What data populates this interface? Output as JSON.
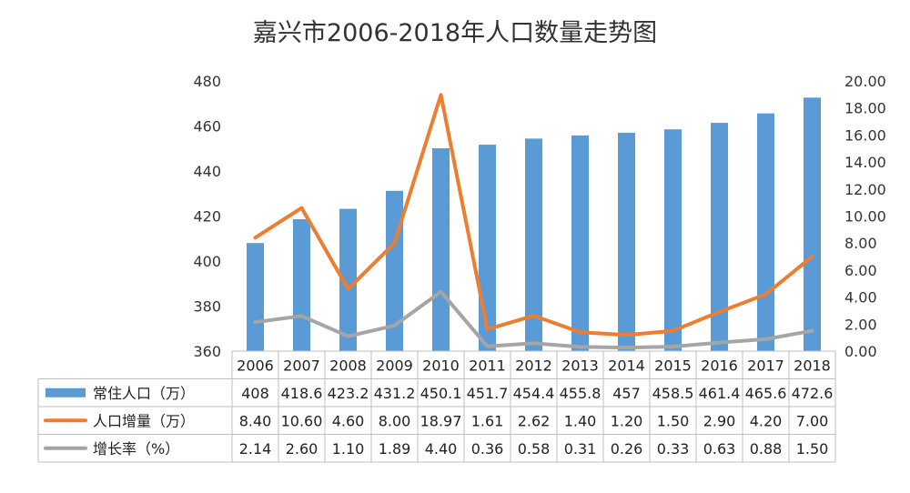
{
  "chart_data": {
    "type": "bar",
    "title": "嘉兴市2006-2018年人口数量走势图",
    "categories": [
      "2006",
      "2007",
      "2008",
      "2009",
      "2010",
      "2011",
      "2012",
      "2013",
      "2014",
      "2015",
      "2016",
      "2017",
      "2018"
    ],
    "series": [
      {
        "name": "常住人口（万）",
        "type": "bar",
        "axis": "left",
        "color": "#5B9BD5",
        "values": [
          408,
          418.6,
          423.2,
          431.2,
          450.1,
          451.7,
          454.4,
          455.8,
          457,
          458.5,
          461.4,
          465.6,
          472.6
        ],
        "labels": [
          "408",
          "418.6",
          "423.2",
          "431.2",
          "450.1",
          "451.7",
          "454.4",
          "455.8",
          "457",
          "458.5",
          "461.4",
          "465.6",
          "472.6"
        ]
      },
      {
        "name": "人口增量（万）",
        "type": "line",
        "axis": "right",
        "color": "#ED7D31",
        "values": [
          8.4,
          10.6,
          4.6,
          8.0,
          18.97,
          1.61,
          2.62,
          1.4,
          1.2,
          1.5,
          2.9,
          4.2,
          7.0
        ],
        "labels": [
          "8.40",
          "10.60",
          "4.60",
          "8.00",
          "18.97",
          "1.61",
          "2.62",
          "1.40",
          "1.20",
          "1.50",
          "2.90",
          "4.20",
          "7.00"
        ]
      },
      {
        "name": "增长率（%）",
        "type": "line",
        "axis": "right",
        "color": "#A5A5A5",
        "values": [
          2.14,
          2.6,
          1.1,
          1.89,
          4.4,
          0.36,
          0.58,
          0.31,
          0.26,
          0.33,
          0.63,
          0.88,
          1.5
        ],
        "labels": [
          "2.14",
          "2.60",
          "1.10",
          "1.89",
          "4.40",
          "0.36",
          "0.58",
          "0.31",
          "0.26",
          "0.33",
          "0.63",
          "0.88",
          "1.50"
        ]
      }
    ],
    "ylim_left": [
      360,
      480
    ],
    "yticks_left": [
      "360",
      "380",
      "400",
      "420",
      "440",
      "460",
      "480"
    ],
    "ylim_right": [
      0,
      20
    ],
    "yticks_right": [
      "0.00",
      "2.00",
      "4.00",
      "6.00",
      "8.00",
      "10.00",
      "12.00",
      "14.00",
      "16.00",
      "18.00",
      "20.00"
    ],
    "grid": false,
    "legend": "data-table"
  }
}
